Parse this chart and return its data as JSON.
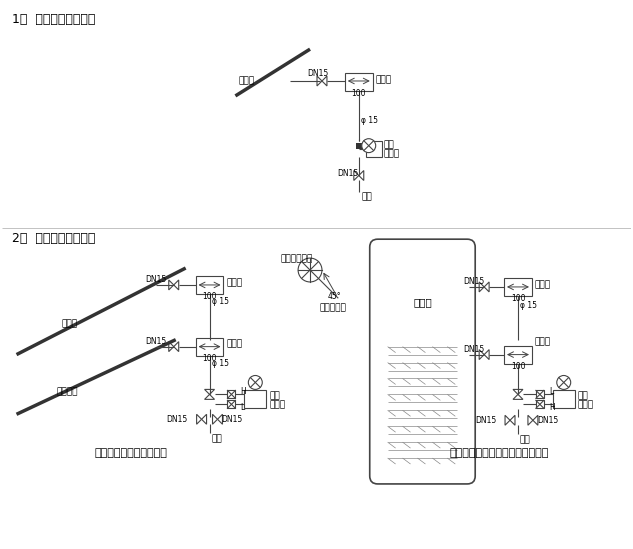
{
  "title1": "1、  压力变送器安装图",
  "title2": "2、  差压变送器安装图",
  "subtitle_left": "测管道差压的安装示意图",
  "subtitle_right": "测闪蒸罐冷凝水液位的安装示意图",
  "bg_color": "#ffffff",
  "line_color": "#444444",
  "text_color": "#000000"
}
